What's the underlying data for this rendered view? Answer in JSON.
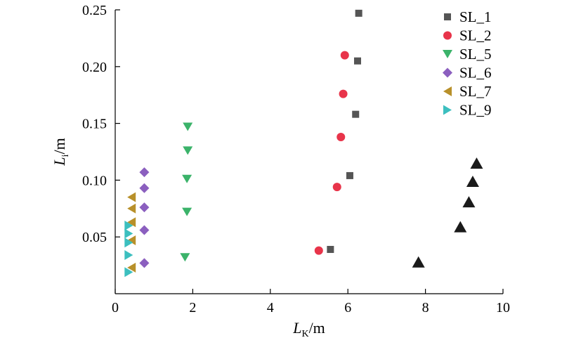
{
  "chart_data": {
    "type": "scatter",
    "title": "",
    "xlabel": {
      "main": "L",
      "sub": "K",
      "unit": "/m"
    },
    "ylabel": {
      "main": "L",
      "sub": "i",
      "unit": "/m"
    },
    "xlim": [
      0,
      10
    ],
    "ylim": [
      0.0,
      0.25
    ],
    "xticks": [
      0,
      2,
      4,
      6,
      8,
      10
    ],
    "xtick_labels": [
      "0",
      "2",
      "4",
      "6",
      "8",
      "10"
    ],
    "yticks": [
      0.05,
      0.1,
      0.15,
      0.2,
      0.25
    ],
    "ytick_labels": [
      "0.05",
      "0.10",
      "0.15",
      "0.20",
      "0.25"
    ],
    "grid": false,
    "legend_position": "top-right",
    "series": [
      {
        "name": "SL_1",
        "marker": "square",
        "color": "#555555",
        "points": [
          [
            5.55,
            0.039
          ],
          [
            6.05,
            0.104
          ],
          [
            6.2,
            0.158
          ],
          [
            6.25,
            0.205
          ],
          [
            6.28,
            0.247
          ]
        ]
      },
      {
        "name": "SL_2",
        "marker": "circle",
        "color": "#e8344a",
        "points": [
          [
            5.25,
            0.038
          ],
          [
            5.72,
            0.094
          ],
          [
            5.82,
            0.138
          ],
          [
            5.88,
            0.176
          ],
          [
            5.92,
            0.21
          ]
        ]
      },
      {
        "name": "SL_5",
        "marker": "triangle-down",
        "color": "#3bb36a",
        "points": [
          [
            1.8,
            0.032
          ],
          [
            1.85,
            0.072
          ],
          [
            1.85,
            0.101
          ],
          [
            1.87,
            0.126
          ],
          [
            1.87,
            0.147
          ]
        ]
      },
      {
        "name": "SL_6",
        "marker": "diamond",
        "color": "#8b5fbf",
        "points": [
          [
            0.75,
            0.027
          ],
          [
            0.75,
            0.056
          ],
          [
            0.75,
            0.076
          ],
          [
            0.75,
            0.093
          ],
          [
            0.75,
            0.107
          ]
        ]
      },
      {
        "name": "SL_7",
        "marker": "triangle-left",
        "color": "#b8902a",
        "points": [
          [
            0.42,
            0.023
          ],
          [
            0.42,
            0.047
          ],
          [
            0.42,
            0.063
          ],
          [
            0.42,
            0.075
          ],
          [
            0.42,
            0.085
          ]
        ]
      },
      {
        "name": "SL_9",
        "marker": "triangle-right",
        "color": "#3cbfbf",
        "points": [
          [
            0.35,
            0.019
          ],
          [
            0.35,
            0.034
          ],
          [
            0.35,
            0.045
          ],
          [
            0.35,
            0.053
          ],
          [
            0.35,
            0.06
          ]
        ]
      },
      {
        "marker": "triangle-up",
        "color": "#1a1a1a",
        "points": [
          [
            7.82,
            0.028
          ],
          [
            8.9,
            0.059
          ],
          [
            9.12,
            0.081
          ],
          [
            9.22,
            0.099
          ],
          [
            9.32,
            0.115
          ]
        ]
      }
    ]
  }
}
